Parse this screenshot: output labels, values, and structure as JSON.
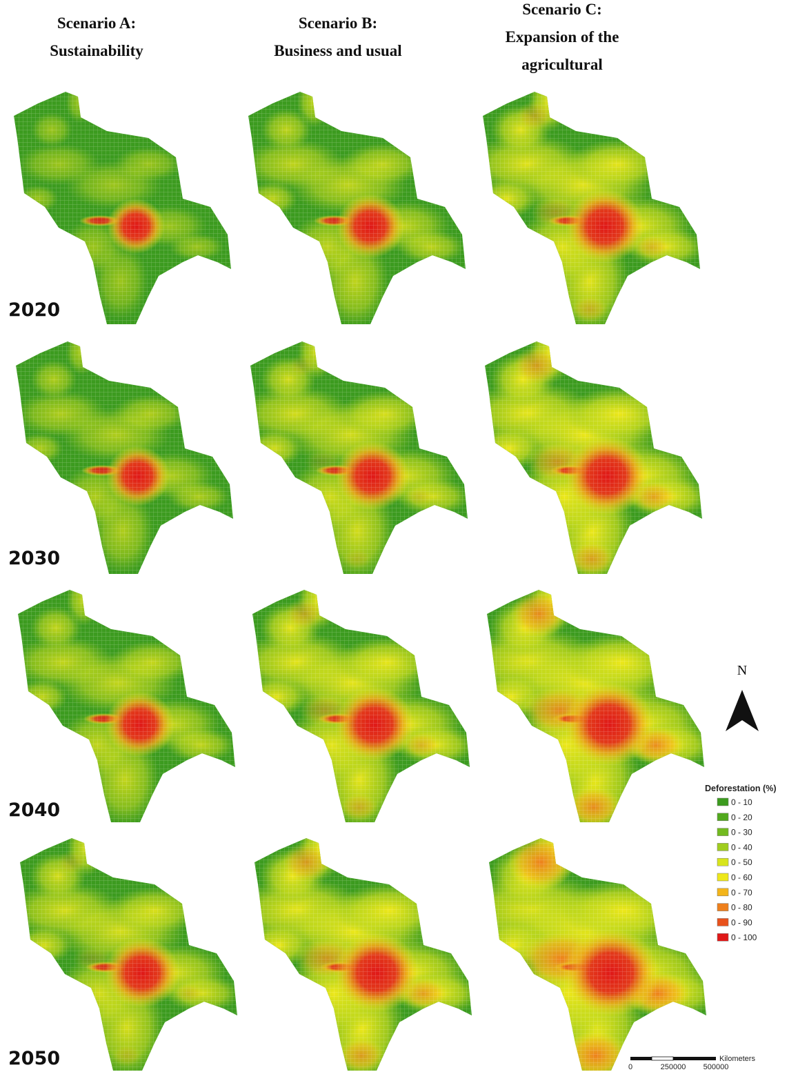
{
  "columns": [
    {
      "title_lines": [
        "Scenario A:",
        "Sustainability"
      ]
    },
    {
      "title_lines": [
        "Scenario B:",
        "Business and usual"
      ]
    },
    {
      "title_lines": [
        "Scenario C:",
        "Expansion of the",
        "agricultural"
      ]
    }
  ],
  "years": [
    "2020",
    "2030",
    "2040",
    "2050"
  ],
  "legend": {
    "title": "Deforestation (%)",
    "items": [
      {
        "label": "0 - 10",
        "color": "#3c9b1f"
      },
      {
        "label": "0 - 20",
        "color": "#52a91e"
      },
      {
        "label": "0 - 30",
        "color": "#72ba1f"
      },
      {
        "label": "0 - 40",
        "color": "#a0cd1e"
      },
      {
        "label": "0 - 50",
        "color": "#d8e51c"
      },
      {
        "label": "0 - 60",
        "color": "#eee81a"
      },
      {
        "label": "0 - 70",
        "color": "#f3b51a"
      },
      {
        "label": "0 - 80",
        "color": "#ee801c"
      },
      {
        "label": "0 - 90",
        "color": "#e8521c"
      },
      {
        "label": "0 - 100",
        "color": "#e01818"
      }
    ]
  },
  "north": "N",
  "scale": {
    "labels": [
      "0",
      "250000",
      "500000"
    ],
    "unit": "Kilometers"
  }
}
